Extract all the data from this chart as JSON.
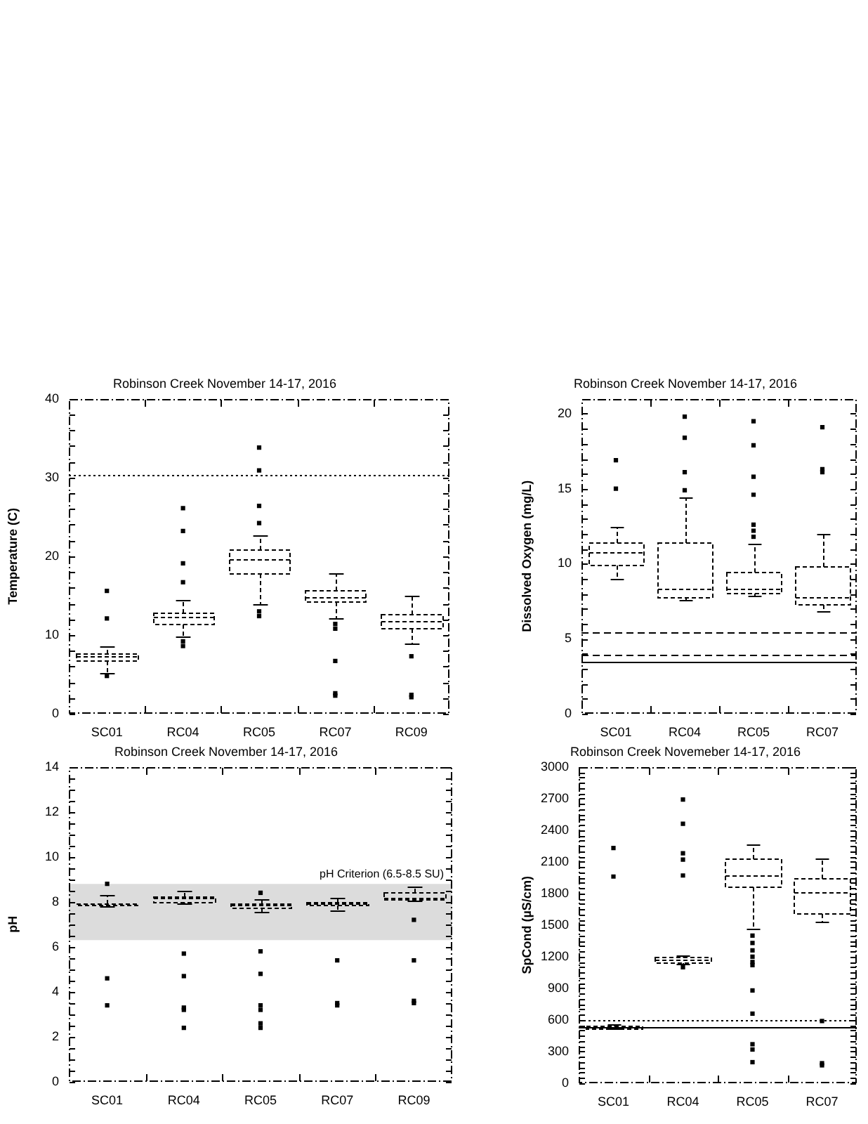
{
  "chart_data": [
    {
      "type": "box",
      "title": "Robinson Creek November 14-17, 2016",
      "ylabel": "Temperature (C)",
      "categories": [
        "SC01",
        "RC04",
        "RC05",
        "RC07",
        "RC09"
      ],
      "color": "#000000",
      "boxes": [
        {
          "low": 5.2,
          "q1": 6.7,
          "median": 7.3,
          "q3": 7.7,
          "high": 8.5,
          "outliers": [
            15.6,
            12.1,
            4.8
          ]
        },
        {
          "low": 9.8,
          "q1": 11.4,
          "median": 12.3,
          "q3": 12.9,
          "high": 14.5,
          "outliers": [
            26.1,
            23.2,
            19.1,
            16.7,
            9.2,
            8.6
          ]
        },
        {
          "low": 13.9,
          "q1": 17.9,
          "median": 19.7,
          "q3": 20.9,
          "high": 22.6,
          "outliers": [
            33.8,
            30.9,
            26.4,
            24.2,
            13.0,
            12.4
          ]
        },
        {
          "low": 12.1,
          "q1": 14.2,
          "median": 14.8,
          "q3": 15.7,
          "high": 17.8,
          "outliers": [
            11.4,
            10.8,
            6.7,
            2.6,
            2.3
          ]
        },
        {
          "low": 9.0,
          "q1": 10.8,
          "median": 11.7,
          "q3": 12.6,
          "high": 15.0,
          "outliers": [
            7.3,
            2.4,
            2.1
          ]
        }
      ],
      "ylim": [
        0,
        40
      ],
      "yticks": [
        0,
        {
          "value": 2,
          "label": null
        },
        {
          "value": 4,
          "label": null
        },
        {
          "value": 6,
          "label": null
        },
        {
          "value": 8,
          "label": null
        },
        10,
        {
          "value": 12,
          "label": null
        },
        {
          "value": 14,
          "label": null
        },
        {
          "value": 16,
          "label": null
        },
        {
          "value": 18,
          "label": null
        },
        20,
        {
          "value": 22,
          "label": null
        },
        {
          "value": 24,
          "label": null
        },
        {
          "value": 26,
          "label": null
        },
        {
          "value": 28,
          "label": null
        },
        30,
        {
          "value": 32,
          "label": null
        },
        {
          "value": 34,
          "label": null
        },
        {
          "value": 36,
          "label": null
        },
        {
          "value": 38,
          "label": null
        },
        40
      ],
      "ref_lines": [
        {
          "axis": "y",
          "value": 30.3,
          "line_style": "dotted",
          "color": "#000000"
        }
      ]
    },
    {
      "type": "box",
      "title": "Robinson Creek November 14-17, 2016",
      "ylabel": "Dissolved Oxygen (mg/L)",
      "categories": [
        "SC01",
        "RC04",
        "RC05",
        "RC07"
      ],
      "color": "#000000",
      "boxes": [
        {
          "low": 9.0,
          "q1": 9.9,
          "median": 10.8,
          "q3": 11.4,
          "high": 12.5,
          "outliers": [
            16.9,
            15.0
          ]
        },
        {
          "low": 7.6,
          "q1": 7.8,
          "median": 8.3,
          "q3": 11.4,
          "high": 14.4,
          "outliers": [
            19.8,
            18.4,
            16.1,
            14.9
          ]
        },
        {
          "low": 7.9,
          "q1": 8.1,
          "median": 8.3,
          "q3": 9.5,
          "high": 11.3,
          "outliers": [
            19.5,
            17.9,
            15.8,
            14.6,
            12.6,
            12.2,
            11.8
          ]
        },
        {
          "low": 6.8,
          "q1": 7.3,
          "median": 7.8,
          "q3": 9.8,
          "high": 12.0,
          "outliers": [
            19.1,
            16.3,
            16.1
          ]
        }
      ],
      "ylim": [
        0,
        21
      ],
      "yticks": [
        0,
        {
          "value": 1,
          "label": null
        },
        {
          "value": 2,
          "label": null
        },
        {
          "value": 3,
          "label": null
        },
        {
          "value": 4,
          "label": null
        },
        5,
        {
          "value": 6,
          "label": null
        },
        {
          "value": 7,
          "label": null
        },
        {
          "value": 8,
          "label": null
        },
        {
          "value": 9,
          "label": null
        },
        10,
        {
          "value": 11,
          "label": null
        },
        {
          "value": 12,
          "label": null
        },
        {
          "value": 13,
          "label": null
        },
        {
          "value": 14,
          "label": null
        },
        15,
        {
          "value": 16,
          "label": null
        },
        {
          "value": 17,
          "label": null
        },
        {
          "value": 18,
          "label": null
        },
        {
          "value": 19,
          "label": null
        },
        20
      ],
      "ref_lines": [
        {
          "axis": "y",
          "value": 5.4,
          "line_style": "dashed",
          "color": "#000000"
        },
        {
          "axis": "y",
          "value": 3.9,
          "line_style": "dashed",
          "color": "#000000"
        },
        {
          "axis": "y",
          "value": 3.5,
          "line_style": "solid",
          "color": "#000000"
        }
      ]
    },
    {
      "type": "box",
      "title": "Robinson Creek November 14-17, 2016",
      "ylabel": "pH",
      "categories": [
        "SC01",
        "RC04",
        "RC05",
        "RC07",
        "RC09"
      ],
      "color": "#000000",
      "boxes": [
        {
          "low": 7.8,
          "q1": 7.85,
          "median": 7.9,
          "q3": 7.95,
          "high": 8.3,
          "outliers": [
            8.8,
            4.6,
            3.4
          ]
        },
        {
          "low": 7.9,
          "q1": 8.0,
          "median": 8.15,
          "q3": 8.25,
          "high": 8.5,
          "outliers": [
            5.7,
            4.7,
            3.3,
            3.2,
            2.4
          ]
        },
        {
          "low": 7.55,
          "q1": 7.75,
          "median": 7.85,
          "q3": 7.95,
          "high": 8.1,
          "outliers": [
            8.4,
            5.8,
            4.8,
            3.4,
            3.2,
            2.6,
            2.4
          ]
        },
        {
          "low": 7.6,
          "q1": 7.85,
          "median": 7.95,
          "q3": 8.0,
          "high": 8.2,
          "outliers": [
            5.4,
            3.5,
            3.4
          ]
        },
        {
          "low": 8.05,
          "q1": 8.1,
          "median": 8.2,
          "q3": 8.4,
          "high": 8.7,
          "outliers": [
            7.2,
            5.4,
            3.6,
            3.5
          ]
        }
      ],
      "ylim": [
        0,
        14
      ],
      "yticks": [
        0,
        {
          "value": 0.5,
          "label": null
        },
        {
          "value": 1,
          "label": null
        },
        {
          "value": 1.5,
          "label": null
        },
        2,
        {
          "value": 2.5,
          "label": null
        },
        {
          "value": 3,
          "label": null
        },
        {
          "value": 3.5,
          "label": null
        },
        4,
        {
          "value": 4.5,
          "label": null
        },
        {
          "value": 5,
          "label": null
        },
        {
          "value": 5.5,
          "label": null
        },
        6,
        {
          "value": 6.5,
          "label": null
        },
        {
          "value": 7,
          "label": null
        },
        {
          "value": 7.5,
          "label": null
        },
        8,
        {
          "value": 8.5,
          "label": null
        },
        {
          "value": 9,
          "label": null
        },
        {
          "value": 9.5,
          "label": null
        },
        10,
        {
          "value": 10.5,
          "label": null
        },
        {
          "value": 11,
          "label": null
        },
        {
          "value": 11.5,
          "label": null
        },
        12,
        {
          "value": 12.5,
          "label": null
        },
        {
          "value": 13,
          "label": null
        },
        {
          "value": 13.5,
          "label": null
        },
        14
      ],
      "bands": [
        {
          "axis": "y",
          "from": 6.3,
          "to": 8.8,
          "label": "pH Criterion (6.5-8.5 SU)",
          "color": "#dcdcdc"
        }
      ]
    },
    {
      "type": "box",
      "title": "Robinson Creek Novemeber 14-17, 2016",
      "ylabel": "SpCond (µS/cm)",
      "categories": [
        "SC01",
        "RC04",
        "RC05",
        "RC07"
      ],
      "color": "#000000",
      "boxes": [
        {
          "low": 515,
          "q1": 525,
          "median": 535,
          "q3": 545,
          "high": 555,
          "outliers": [
            2230,
            1960
          ]
        },
        {
          "low": 1130,
          "q1": 1150,
          "median": 1170,
          "q3": 1195,
          "high": 1210,
          "outliers": [
            2690,
            2460,
            2180,
            2120,
            1970,
            1100
          ]
        },
        {
          "low": 1460,
          "q1": 1860,
          "median": 1970,
          "q3": 2130,
          "high": 2270,
          "outliers": [
            1400,
            1330,
            1260,
            1200,
            1150,
            1120,
            880,
            660,
            370,
            320,
            200
          ]
        },
        {
          "low": 1530,
          "q1": 1610,
          "median": 1810,
          "q3": 1940,
          "high": 2130,
          "outliers": [
            590,
            190,
            170
          ]
        }
      ],
      "ylim": [
        0,
        3000
      ],
      "yticks": [
        0,
        {
          "value": 50,
          "label": null
        },
        {
          "value": 100,
          "label": null
        },
        {
          "value": 150,
          "label": null
        },
        {
          "value": 200,
          "label": null
        },
        {
          "value": 250,
          "label": null
        },
        300,
        {
          "value": 350,
          "label": null
        },
        {
          "value": 400,
          "label": null
        },
        {
          "value": 450,
          "label": null
        },
        {
          "value": 500,
          "label": null
        },
        {
          "value": 550,
          "label": null
        },
        600,
        {
          "value": 650,
          "label": null
        },
        {
          "value": 700,
          "label": null
        },
        {
          "value": 750,
          "label": null
        },
        {
          "value": 800,
          "label": null
        },
        {
          "value": 850,
          "label": null
        },
        900,
        {
          "value": 950,
          "label": null
        },
        {
          "value": 1000,
          "label": null
        },
        {
          "value": 1050,
          "label": null
        },
        {
          "value": 1100,
          "label": null
        },
        {
          "value": 1150,
          "label": null
        },
        1200,
        {
          "value": 1250,
          "label": null
        },
        {
          "value": 1300,
          "label": null
        },
        {
          "value": 1350,
          "label": null
        },
        {
          "value": 1400,
          "label": null
        },
        {
          "value": 1450,
          "label": null
        },
        1500,
        {
          "value": 1550,
          "label": null
        },
        {
          "value": 1600,
          "label": null
        },
        {
          "value": 1650,
          "label": null
        },
        {
          "value": 1700,
          "label": null
        },
        {
          "value": 1750,
          "label": null
        },
        1800,
        {
          "value": 1850,
          "label": null
        },
        {
          "value": 1900,
          "label": null
        },
        {
          "value": 1950,
          "label": null
        },
        {
          "value": 2000,
          "label": null
        },
        {
          "value": 2050,
          "label": null
        },
        2100,
        {
          "value": 2150,
          "label": null
        },
        {
          "value": 2200,
          "label": null
        },
        {
          "value": 2250,
          "label": null
        },
        {
          "value": 2300,
          "label": null
        },
        {
          "value": 2350,
          "label": null
        },
        2400,
        {
          "value": 2450,
          "label": null
        },
        {
          "value": 2500,
          "label": null
        },
        {
          "value": 2550,
          "label": null
        },
        {
          "value": 2600,
          "label": null
        },
        {
          "value": 2650,
          "label": null
        },
        2700,
        {
          "value": 2750,
          "label": null
        },
        {
          "value": 2800,
          "label": null
        },
        {
          "value": 2850,
          "label": null
        },
        {
          "value": 2900,
          "label": null
        },
        {
          "value": 2950,
          "label": null
        },
        3000
      ],
      "ref_lines": [
        {
          "axis": "y",
          "value": 600,
          "line_style": "dotted",
          "color": "#000000"
        },
        {
          "axis": "y",
          "value": 535,
          "line_style": "solid",
          "color": "#000000"
        }
      ]
    }
  ]
}
